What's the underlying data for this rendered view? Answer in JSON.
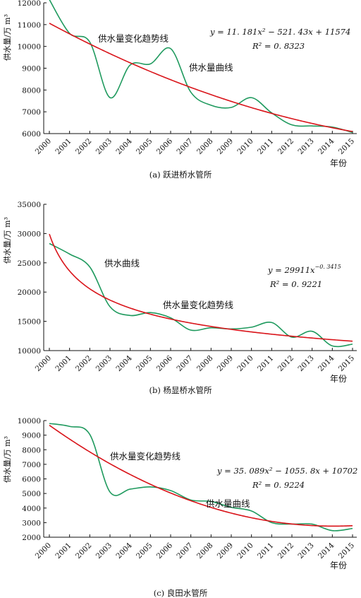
{
  "colors": {
    "trend": "#d9141a",
    "supply": "#1f9a5e",
    "axis": "#111111"
  },
  "chart_data": [
    {
      "type": "line",
      "caption": "(a) 跃进桥水管所",
      "ylabel": "供水量/万 m³",
      "xlabel": "年份",
      "x": [
        "2000",
        "2001",
        "2002",
        "2003",
        "2004",
        "2005",
        "2006",
        "2007",
        "2008",
        "2009",
        "2010",
        "2011",
        "2012",
        "2013",
        "2014",
        "2015"
      ],
      "ylim": [
        6000,
        12000
      ],
      "yticks": [
        6000,
        7000,
        8000,
        9000,
        10000,
        11000,
        12000
      ],
      "series": [
        {
          "name": "供水量曲线",
          "role": "supply",
          "values": [
            12150,
            10600,
            10200,
            7650,
            9150,
            9200,
            9900,
            7900,
            7300,
            7200,
            7650,
            6950,
            6400,
            6350,
            6300,
            6050
          ]
        },
        {
          "name": "供水量变化趋势线",
          "role": "trend",
          "model": "poly2",
          "coef": [
            11.181,
            -521.43,
            11574
          ]
        }
      ],
      "annotations": {
        "trend_label": "供水量变化趋势线",
        "supply_label": "供水量曲线",
        "equation": "y = 11. 181x² − 521. 43x + 11574",
        "r2": "R² = 0. 8323"
      }
    },
    {
      "type": "line",
      "caption": "(b) 杨显桥水管所",
      "ylabel": "供水量/万 m³",
      "xlabel": "年份",
      "x": [
        "2000",
        "2001",
        "2002",
        "2003",
        "2004",
        "2005",
        "2006",
        "2007",
        "2008",
        "2009",
        "2010",
        "2011",
        "2012",
        "2013",
        "2014",
        "2015"
      ],
      "ylim": [
        10000,
        35000
      ],
      "yticks": [
        10000,
        15000,
        20000,
        25000,
        30000,
        35000
      ],
      "series": [
        {
          "name": "供水曲线",
          "role": "supply",
          "values": [
            28300,
            26500,
            24300,
            17500,
            16000,
            16500,
            15600,
            13500,
            13900,
            13700,
            14000,
            14800,
            12300,
            13300,
            10800,
            11100
          ]
        },
        {
          "name": "供水量变化趋势线",
          "role": "trend",
          "model": "power",
          "coef": [
            29911,
            -0.3415
          ]
        }
      ],
      "annotations": {
        "trend_label": "供水量变化趋势线",
        "supply_label": "供水曲线",
        "equation": "y = 29911x",
        "equation_exp": "−0. 3415",
        "r2": "R² = 0. 9221"
      }
    },
    {
      "type": "line",
      "caption": "(c) 良田水管所",
      "ylabel": "供水量/万 m³",
      "xlabel": "年份",
      "x": [
        "2000",
        "2001",
        "2002",
        "2003",
        "2004",
        "2005",
        "2006",
        "2007",
        "2008",
        "2009",
        "2010",
        "2011",
        "2012",
        "2013",
        "2014",
        "2015"
      ],
      "ylim": [
        2000,
        10000
      ],
      "yticks": [
        2000,
        3000,
        4000,
        5000,
        6000,
        7000,
        8000,
        9000,
        10000
      ],
      "series": [
        {
          "name": "供水量曲线",
          "role": "supply",
          "values": [
            9800,
            9600,
            9050,
            5100,
            5300,
            5450,
            5200,
            4550,
            4450,
            4050,
            3800,
            3000,
            2900,
            2900,
            2450,
            2600
          ]
        },
        {
          "name": "供水量变化趋势线",
          "role": "trend",
          "model": "poly2",
          "coef": [
            35.089,
            -1055.8,
            10702
          ]
        }
      ],
      "annotations": {
        "trend_label": "供水量变化趋势线",
        "supply_label": "供水量曲线",
        "equation": "y = 35. 089x² − 1055. 8x + 10702",
        "r2": "R² = 0. 9224"
      }
    }
  ]
}
